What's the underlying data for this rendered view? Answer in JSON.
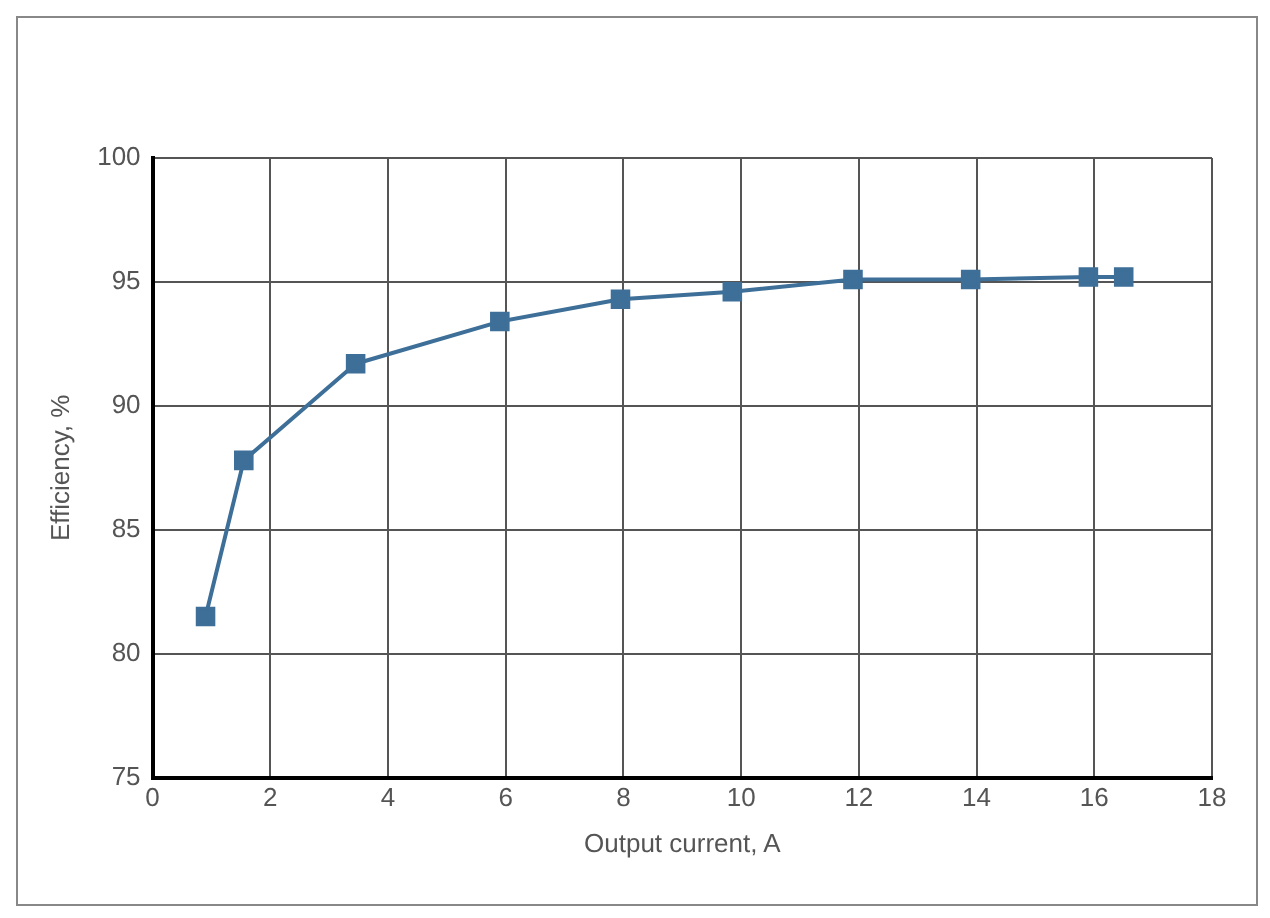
{
  "chart_data": {
    "type": "line",
    "xlabel": "Output current, A",
    "ylabel": "Efficiency, %",
    "x": [
      0.9,
      1.55,
      3.45,
      5.9,
      7.95,
      9.85,
      11.9,
      13.9,
      15.9,
      16.5
    ],
    "series": [
      {
        "color": "#3d6f98",
        "values": [
          81.5,
          87.8,
          91.7,
          93.4,
          94.3,
          94.6,
          95.1,
          95.1,
          95.2,
          95.2
        ]
      }
    ],
    "xlim": [
      0,
      18
    ],
    "xticks": [
      0,
      2,
      4,
      6,
      8,
      10,
      12,
      14,
      16,
      18
    ],
    "ylim": [
      75,
      100
    ],
    "yticks": [
      75,
      80,
      85,
      90,
      95,
      100
    ],
    "grid": true,
    "legend": false,
    "marker": "square",
    "line_style": "solid"
  }
}
